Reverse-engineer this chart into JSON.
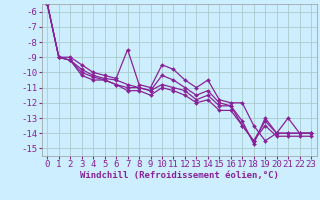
{
  "background_color": "#cceeff",
  "grid_color": "#aacccc",
  "line_color": "#882299",
  "xlim": [
    -0.5,
    23.5
  ],
  "ylim": [
    -15.5,
    -5.5
  ],
  "yticks": [
    -15,
    -14,
    -13,
    -12,
    -11,
    -10,
    -9,
    -8,
    -7,
    -6
  ],
  "xticks": [
    0,
    1,
    2,
    3,
    4,
    5,
    6,
    7,
    8,
    9,
    10,
    11,
    12,
    13,
    14,
    15,
    16,
    17,
    18,
    19,
    20,
    21,
    22,
    23
  ],
  "xlabel": "Windchill (Refroidissement éolien,°C)",
  "series": [
    [
      -5.5,
      -9.0,
      -9.0,
      -9.5,
      -10.0,
      -10.2,
      -10.4,
      -8.5,
      -10.8,
      -11.0,
      -9.5,
      -9.8,
      -10.5,
      -11.0,
      -10.5,
      -11.8,
      -12.0,
      -12.0,
      -13.5,
      -14.5,
      -14.0,
      -13.0,
      -14.0,
      -14.0
    ],
    [
      -5.5,
      -9.0,
      -9.2,
      -9.8,
      -10.2,
      -10.4,
      -10.5,
      -10.8,
      -11.0,
      -11.2,
      -10.2,
      -10.5,
      -11.0,
      -11.5,
      -11.2,
      -12.0,
      -12.2,
      -13.2,
      -14.7,
      -13.0,
      -14.0,
      -14.0,
      -14.0,
      -14.0
    ],
    [
      -5.5,
      -9.0,
      -9.2,
      -10.0,
      -10.3,
      -10.5,
      -10.8,
      -11.0,
      -11.0,
      -11.2,
      -10.8,
      -11.0,
      -11.2,
      -11.8,
      -11.5,
      -12.2,
      -12.2,
      -13.5,
      -14.5,
      -13.2,
      -14.0,
      -14.0,
      -14.0,
      -14.0
    ],
    [
      -5.5,
      -9.0,
      -9.2,
      -10.2,
      -10.5,
      -10.5,
      -10.8,
      -11.2,
      -11.2,
      -11.5,
      -11.0,
      -11.2,
      -11.5,
      -12.0,
      -11.8,
      -12.5,
      -12.5,
      -13.5,
      -14.5,
      -13.5,
      -14.2,
      -14.2,
      -14.2,
      -14.2
    ]
  ],
  "tick_fontsize": 6.5,
  "label_fontsize": 6.5,
  "linewidth": 0.9,
  "markersize": 2.0
}
